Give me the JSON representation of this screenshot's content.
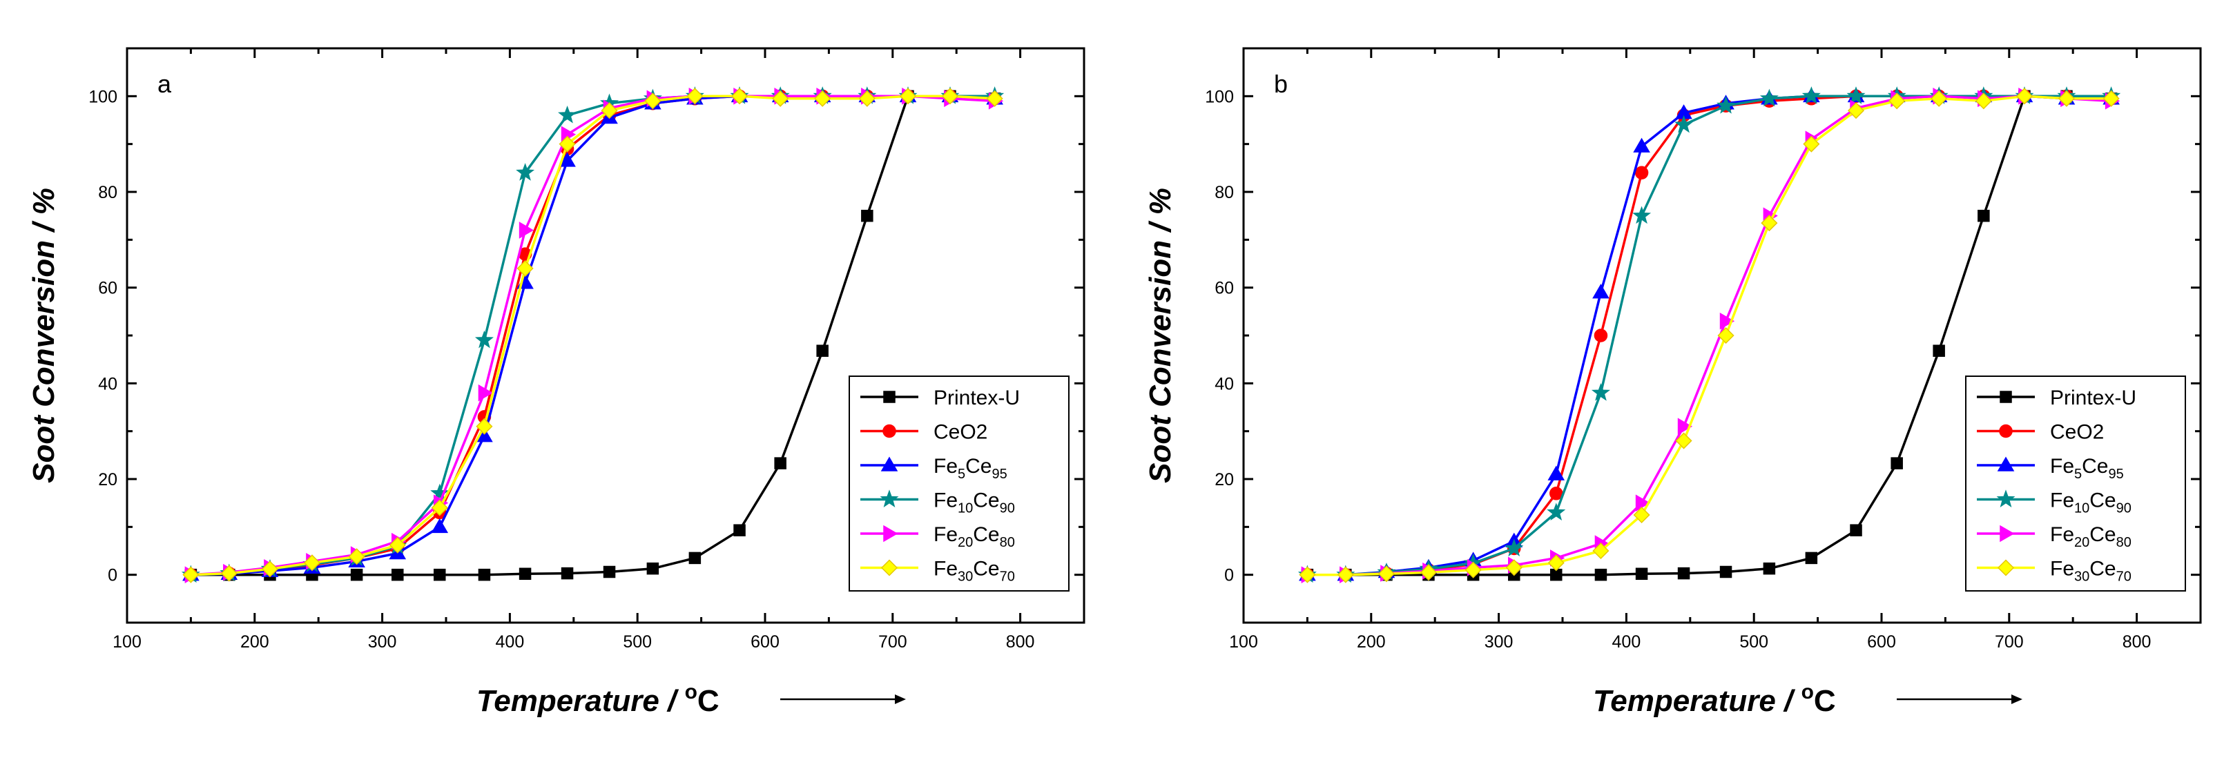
{
  "figure": {
    "temperature_unit_label": "Temperature / ",
    "temperature_degree": "o",
    "temperature_unit": "C"
  },
  "chart_data": [
    {
      "type": "line",
      "panel_label": "a",
      "xlabel": "Temperature / oC",
      "ylabel": "Soot Conversion / %",
      "xlim": [
        100,
        850
      ],
      "ylim": [
        -10,
        110
      ],
      "xticks": [
        100,
        200,
        300,
        400,
        500,
        600,
        700,
        800
      ],
      "yticks": [
        0,
        20,
        40,
        60,
        80,
        100
      ],
      "legend_position": "bottom-right",
      "x": [
        150,
        180,
        212,
        245,
        280,
        312,
        345,
        380,
        412,
        445,
        478,
        512,
        545,
        580,
        612,
        645,
        680,
        712,
        745,
        780
      ],
      "series": [
        {
          "name": "Printex-U",
          "base": "Printex-U",
          "sub1": "",
          "mid": "",
          "sub2": "",
          "color": "#000000",
          "marker": "square",
          "values": [
            0,
            0,
            0,
            0,
            0,
            0,
            0,
            0,
            0.2,
            0.3,
            0.6,
            1.3,
            3.5,
            9.3,
            23.3,
            46.8,
            75.0,
            100,
            100,
            99.5
          ]
        },
        {
          "name": "CeO2",
          "base": "CeO2",
          "sub1": "",
          "mid": "",
          "sub2": "",
          "color": "#ff0000",
          "marker": "circle",
          "values": [
            0,
            0.3,
            1.0,
            2.0,
            3.5,
            5.5,
            13,
            33,
            67,
            89,
            96,
            98.5,
            99.5,
            100,
            100,
            100,
            100,
            100,
            100,
            99.5
          ]
        },
        {
          "name": "Fe5Ce95",
          "base": "Fe",
          "sub1": "5",
          "mid": "Ce",
          "sub2": "95",
          "color": "#0000ff",
          "marker": "triangle-up",
          "values": [
            0,
            0.2,
            0.8,
            1.5,
            2.8,
            4.5,
            10,
            29,
            61,
            86.5,
            95.5,
            98.5,
            99.5,
            100,
            100,
            100,
            100,
            100,
            100,
            99.5
          ]
        },
        {
          "name": "Fe10Ce90",
          "base": "Fe",
          "sub1": "10",
          "mid": "Ce",
          "sub2": "90",
          "color": "#008b8b",
          "marker": "star",
          "values": [
            0,
            0.3,
            1.2,
            2.2,
            3.5,
            6,
            17,
            49,
            84,
            96,
            98.5,
            99.5,
            100,
            100,
            100,
            100,
            100,
            100,
            100,
            100
          ]
        },
        {
          "name": "Fe20Ce80",
          "base": "Fe",
          "sub1": "20",
          "mid": "Ce",
          "sub2": "80",
          "color": "#ff00ff",
          "marker": "triangle-right",
          "values": [
            0,
            0.5,
            1.5,
            2.8,
            4.2,
            7,
            15,
            38,
            72,
            92,
            97.5,
            99.5,
            100,
            100,
            100,
            100,
            100,
            100,
            99.5,
            99
          ]
        },
        {
          "name": "Fe30Ce70",
          "base": "Fe",
          "sub1": "30",
          "mid": "Ce",
          "sub2": "70",
          "color": "#ffff00",
          "marker": "diamond",
          "values": [
            0,
            0.3,
            1.2,
            2.5,
            3.8,
            6.2,
            14,
            31,
            64,
            90,
            97,
            99,
            100,
            100,
            99.5,
            99.5,
            99.5,
            100,
            100,
            99.5
          ]
        }
      ]
    },
    {
      "type": "line",
      "panel_label": "b",
      "xlabel": "Temperature / oC",
      "ylabel": "Soot Conversion / %",
      "xlim": [
        100,
        850
      ],
      "ylim": [
        -10,
        110
      ],
      "xticks": [
        100,
        200,
        300,
        400,
        500,
        600,
        700,
        800
      ],
      "yticks": [
        0,
        20,
        40,
        60,
        80,
        100
      ],
      "legend_position": "bottom-right",
      "x": [
        150,
        180,
        212,
        245,
        280,
        312,
        345,
        380,
        412,
        445,
        478,
        512,
        545,
        580,
        612,
        645,
        680,
        712,
        745,
        780
      ],
      "series": [
        {
          "name": "Printex-U",
          "base": "Printex-U",
          "sub1": "",
          "mid": "",
          "sub2": "",
          "color": "#000000",
          "marker": "square",
          "values": [
            0,
            0,
            0,
            0,
            0,
            0,
            0,
            0,
            0.2,
            0.3,
            0.6,
            1.3,
            3.5,
            9.3,
            23.3,
            46.8,
            75.0,
            100,
            100,
            99.5
          ]
        },
        {
          "name": "CeO2",
          "base": "CeO2",
          "sub1": "",
          "mid": "",
          "sub2": "",
          "color": "#ff0000",
          "marker": "circle",
          "values": [
            0,
            0,
            0.3,
            1.0,
            2.2,
            5.5,
            17,
            50,
            84,
            96,
            98,
            99,
            99.5,
            100,
            100,
            100,
            100,
            100,
            100,
            99.5
          ]
        },
        {
          "name": "Fe5Ce95",
          "base": "Fe",
          "sub1": "5",
          "mid": "Ce",
          "sub2": "95",
          "color": "#0000ff",
          "marker": "triangle-up",
          "values": [
            0,
            0,
            0.6,
            1.5,
            3.0,
            7,
            21,
            59,
            89.5,
            96.5,
            98.5,
            99.5,
            100,
            100,
            100,
            100,
            100,
            100,
            99.5,
            99.5
          ]
        },
        {
          "name": "Fe10Ce90",
          "base": "Fe",
          "sub1": "10",
          "mid": "Ce",
          "sub2": "90",
          "color": "#008b8b",
          "marker": "star",
          "values": [
            0,
            0,
            0.5,
            1.2,
            2.4,
            5.5,
            13,
            38,
            75,
            94,
            98,
            99.5,
            100,
            100,
            100,
            100,
            100,
            100,
            100,
            100
          ]
        },
        {
          "name": "Fe20Ce80",
          "base": "Fe",
          "sub1": "20",
          "mid": "Ce",
          "sub2": "80",
          "color": "#ff00ff",
          "marker": "triangle-right",
          "values": [
            0,
            0,
            0.3,
            0.8,
            1.5,
            2.0,
            3.5,
            6.5,
            15,
            31,
            53,
            75,
            91,
            97.5,
            99.5,
            100,
            99.5,
            100,
            99.5,
            99
          ]
        },
        {
          "name": "Fe30Ce70",
          "base": "Fe",
          "sub1": "30",
          "mid": "Ce",
          "sub2": "70",
          "color": "#ffff00",
          "marker": "diamond",
          "values": [
            0,
            0,
            0.2,
            0.5,
            1.0,
            1.5,
            2.5,
            5.0,
            12.5,
            28,
            50,
            73.5,
            90,
            97,
            99,
            99.5,
            99,
            100,
            99.5,
            99.5
          ]
        }
      ]
    }
  ]
}
